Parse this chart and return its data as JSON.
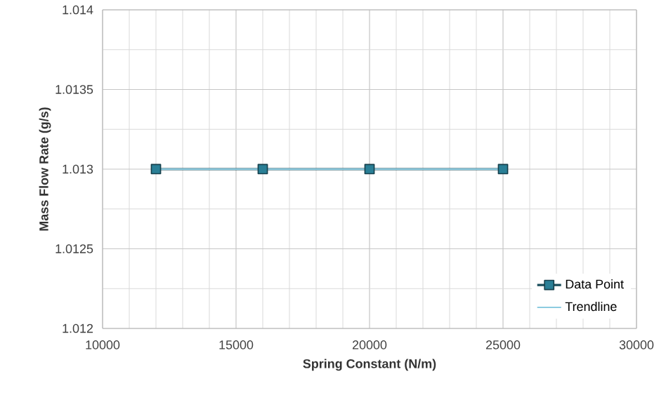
{
  "chart_data": {
    "type": "line",
    "xlabel": "Spring Constant (N/m)",
    "ylabel": "Mass Flow Rate (g/s)",
    "xlim": [
      10000,
      30000
    ],
    "xticks": [
      10000,
      15000,
      20000,
      25000,
      30000
    ],
    "ylim": [
      1.012,
      1.014
    ],
    "yticks": [
      1.012,
      1.0125,
      1.013,
      1.0135,
      1.014
    ],
    "grid": true,
    "legend": "bottom right",
    "series": [
      {
        "name": "Data Point",
        "color": "#2a7f96",
        "marker": "square",
        "x": [
          12000,
          16000,
          20000,
          25000
        ],
        "values": [
          1.013,
          1.013,
          1.013,
          1.013
        ]
      },
      {
        "name": "Trendline",
        "color": "#8ccbe0",
        "marker": "none",
        "x": [
          12000,
          25000
        ],
        "values": [
          1.013,
          1.013
        ]
      }
    ]
  }
}
